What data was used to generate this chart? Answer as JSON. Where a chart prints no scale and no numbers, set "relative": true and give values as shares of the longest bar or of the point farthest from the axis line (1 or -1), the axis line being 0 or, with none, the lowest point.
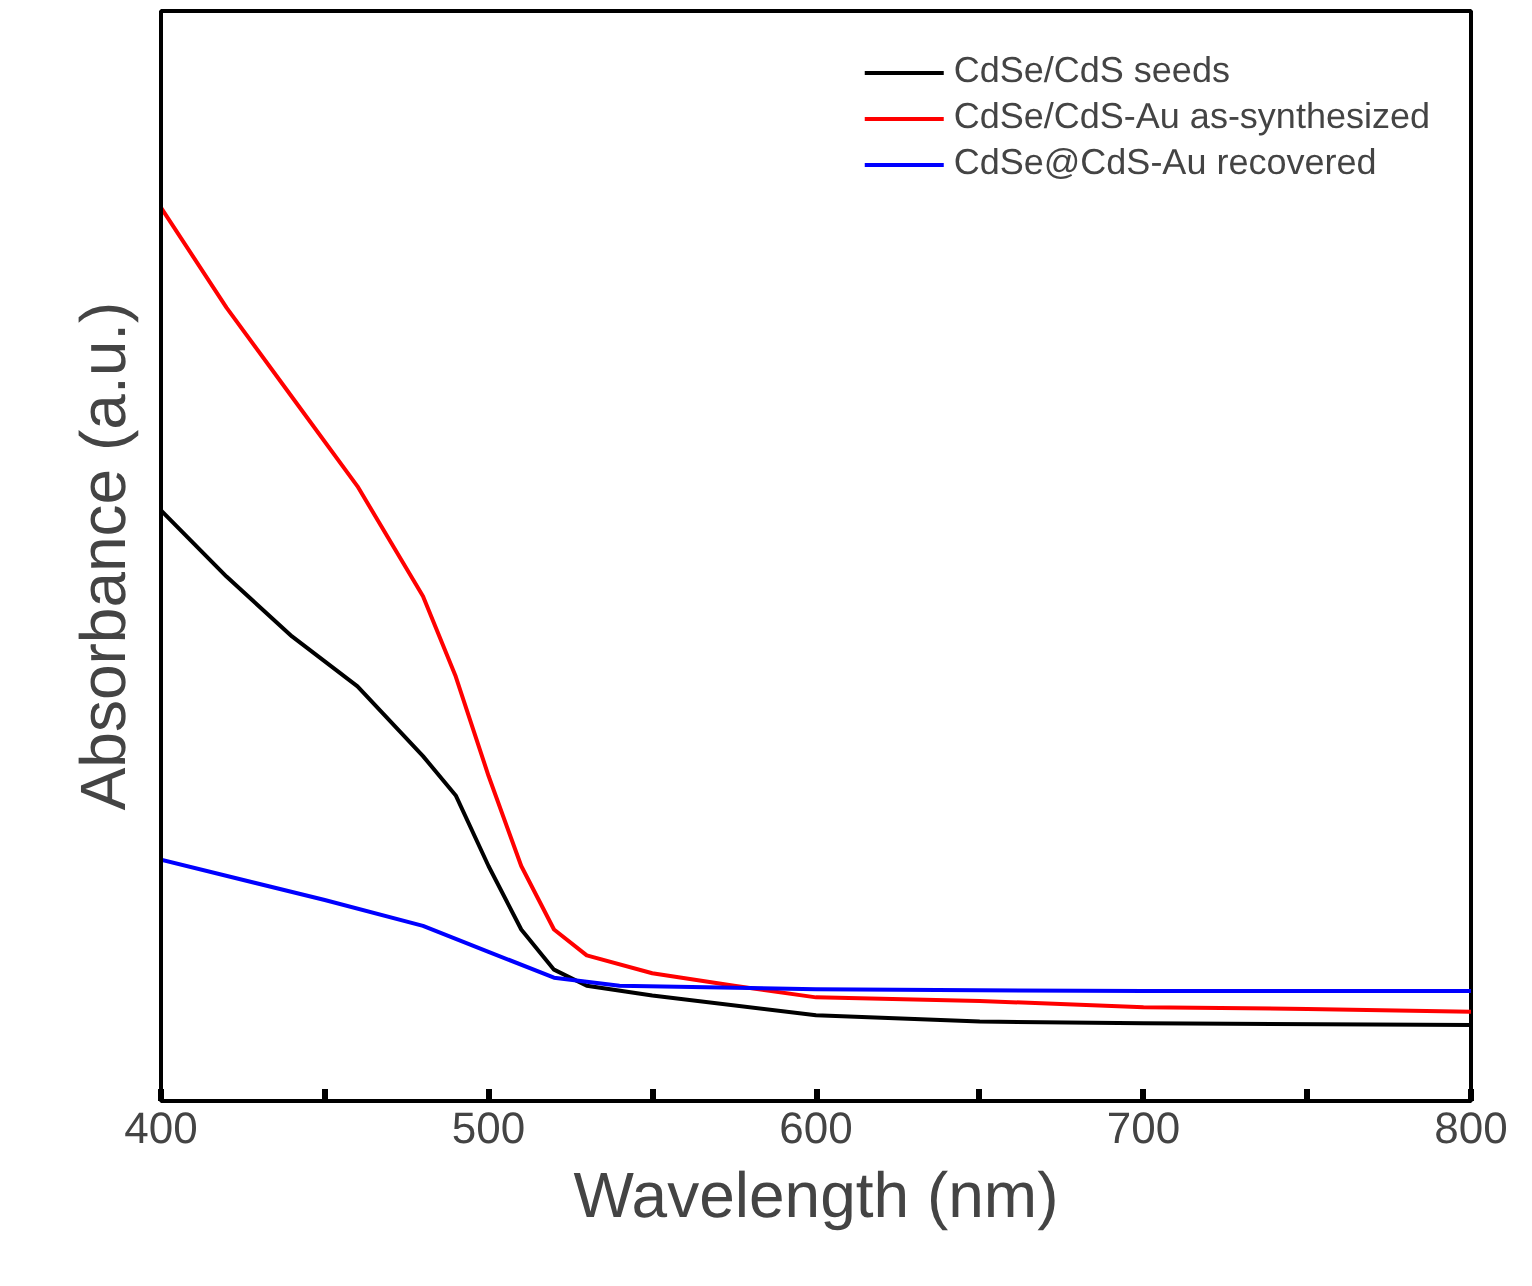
{
  "chart_data": {
    "type": "line",
    "xlabel": "Wavelength (nm)",
    "ylabel": "Absorbance (a.u.)",
    "relative": true,
    "xlim": [
      400,
      800
    ],
    "xticks": [
      400,
      {
        "value": 450,
        "label": null
      },
      500,
      {
        "value": 550,
        "label": null
      },
      600,
      {
        "value": 650,
        "label": null
      },
      700,
      {
        "value": 750,
        "label": null
      },
      800
    ],
    "legend": "top right",
    "grid": false,
    "marker": "none",
    "line_style": "solid",
    "series": [
      {
        "name": "CdSe/CdS seeds",
        "color": "#000000",
        "x": [
          400,
          420,
          440,
          460,
          480,
          490,
          500,
          510,
          520,
          530,
          550,
          600,
          650,
          700,
          800
        ],
        "values": [
          0.661,
          0.587,
          0.52,
          0.464,
          0.386,
          0.342,
          0.263,
          0.192,
          0.147,
          0.129,
          0.118,
          0.096,
          0.089,
          0.087,
          0.085
        ]
      },
      {
        "name": "CdSe/CdS-Au as-synthesized",
        "color": "#ff0000",
        "x": [
          400,
          420,
          440,
          460,
          480,
          490,
          500,
          510,
          520,
          530,
          550,
          575,
          600,
          650,
          700,
          750,
          800
        ],
        "values": [
          1,
          0.888,
          0.788,
          0.688,
          0.565,
          0.475,
          0.364,
          0.263,
          0.192,
          0.163,
          0.143,
          0.129,
          0.116,
          0.112,
          0.105,
          0.103,
          0.1
        ]
      },
      {
        "name": "CdSe@CdS-Au recovered",
        "color": "#0000ff",
        "x": [
          400,
          450,
          480,
          500,
          520,
          540,
          600,
          700,
          800
        ],
        "values": [
          0.27,
          0.225,
          0.196,
          0.167,
          0.138,
          0.129,
          0.125,
          0.123,
          0.123
        ]
      }
    ]
  }
}
